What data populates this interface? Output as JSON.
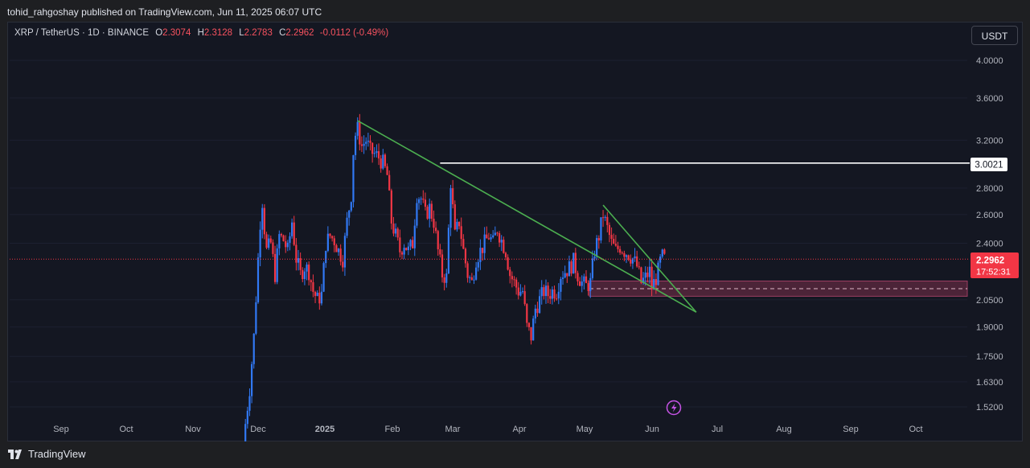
{
  "header": {
    "publisher_text": "tohid_rahgoshay published on TradingView.com, Jun 11, 2025 06:07 UTC"
  },
  "symbol": {
    "name": "XRP / TetherUS · 1D · BINANCE",
    "open_label": "O",
    "open_value": "2.3074",
    "high_label": "H",
    "high_value": "2.3128",
    "low_label": "L",
    "low_value": "2.2783",
    "close_label": "C",
    "close_value": "2.2962",
    "change": "-0.0112 (-0.49%)"
  },
  "currency_button": "USDT",
  "price_labels": {
    "resistance": "3.0021",
    "last_price": "2.2962",
    "countdown": "17:52:31"
  },
  "footer": {
    "brand": "TradingView"
  },
  "icons": [
    "tradingview-logo-icon",
    "lightning-icon"
  ],
  "colors": {
    "up": "#3179f5",
    "down": "#f23645",
    "trendline": "#4caf50",
    "resistance": "#ffffff",
    "zone": "#7a2f4b"
  },
  "chart_data": {
    "type": "candlestick",
    "scale": "log",
    "y_ticks": [
      "4.0000",
      "3.6000",
      "3.2000",
      "2.8000",
      "2.6000",
      "2.4000",
      "2.0500",
      "1.9000",
      "1.7500",
      "1.6300",
      "1.5200"
    ],
    "x_ticks": [
      "Sep",
      "Oct",
      "Nov",
      "Dec",
      "2025",
      "Feb",
      "Mar",
      "Apr",
      "May",
      "Jun",
      "Jul",
      "Aug",
      "Sep",
      "Oct"
    ],
    "ylim": [
      1.49,
      4.2
    ],
    "last_price": 2.2962,
    "resistance_level": 3.0021,
    "support_zone": [
      2.07,
      2.16
    ],
    "trendlines": [
      {
        "from": [
          "2025-01-17",
          3.38
        ],
        "to": [
          "2025-06-26",
          1.98
        ]
      },
      {
        "from": [
          "2025-05-13",
          2.67
        ],
        "to": [
          "2025-06-26",
          1.98
        ]
      }
    ],
    "closes": [
      [
        "2024-11-25",
        1.45
      ],
      [
        "2024-11-27",
        1.6
      ],
      [
        "2024-11-29",
        1.85
      ],
      [
        "2024-12-01",
        2.3
      ],
      [
        "2024-12-02",
        2.55
      ],
      [
        "2024-12-03",
        2.7
      ],
      [
        "2024-12-04",
        2.5
      ],
      [
        "2024-12-05",
        2.35
      ],
      [
        "2024-12-07",
        2.4
      ],
      [
        "2024-12-09",
        2.2
      ],
      [
        "2024-12-11",
        2.45
      ],
      [
        "2024-12-13",
        2.42
      ],
      [
        "2024-12-15",
        2.35
      ],
      [
        "2024-12-17",
        2.55
      ],
      [
        "2024-12-19",
        2.3
      ],
      [
        "2024-12-21",
        2.2
      ],
      [
        "2024-12-23",
        2.25
      ],
      [
        "2024-12-25",
        2.22
      ],
      [
        "2024-12-27",
        2.1
      ],
      [
        "2024-12-29",
        2.05
      ],
      [
        "2024-12-31",
        2.08
      ],
      [
        "2025-01-02",
        2.4
      ],
      [
        "2025-01-04",
        2.45
      ],
      [
        "2025-01-06",
        2.42
      ],
      [
        "2025-01-08",
        2.35
      ],
      [
        "2025-01-10",
        2.3
      ],
      [
        "2025-01-12",
        2.55
      ],
      [
        "2025-01-14",
        2.75
      ],
      [
        "2025-01-15",
        3.1
      ],
      [
        "2025-01-16",
        3.25
      ],
      [
        "2025-01-17",
        3.3
      ],
      [
        "2025-01-19",
        3.15
      ],
      [
        "2025-01-21",
        3.2
      ],
      [
        "2025-01-23",
        3.1
      ],
      [
        "2025-01-25",
        3.08
      ],
      [
        "2025-01-27",
        3.05
      ],
      [
        "2025-01-29",
        3.0
      ],
      [
        "2025-01-31",
        2.9
      ],
      [
        "2025-02-02",
        2.55
      ],
      [
        "2025-02-04",
        2.45
      ],
      [
        "2025-02-06",
        2.35
      ],
      [
        "2025-02-08",
        2.4
      ],
      [
        "2025-02-10",
        2.35
      ],
      [
        "2025-02-12",
        2.4
      ],
      [
        "2025-02-14",
        2.75
      ],
      [
        "2025-02-16",
        2.72
      ],
      [
        "2025-02-18",
        2.6
      ],
      [
        "2025-02-20",
        2.65
      ],
      [
        "2025-02-22",
        2.55
      ],
      [
        "2025-02-24",
        2.35
      ],
      [
        "2025-02-26",
        2.2
      ],
      [
        "2025-02-28",
        2.18
      ],
      [
        "2025-03-02",
        2.85
      ],
      [
        "2025-03-04",
        2.45
      ],
      [
        "2025-03-06",
        2.55
      ],
      [
        "2025-03-08",
        2.35
      ],
      [
        "2025-03-10",
        2.2
      ],
      [
        "2025-03-12",
        2.15
      ],
      [
        "2025-03-14",
        2.3
      ],
      [
        "2025-03-16",
        2.35
      ],
      [
        "2025-03-18",
        2.4
      ],
      [
        "2025-03-20",
        2.45
      ],
      [
        "2025-03-22",
        2.4
      ],
      [
        "2025-03-24",
        2.5
      ],
      [
        "2025-03-26",
        2.42
      ],
      [
        "2025-03-28",
        2.35
      ],
      [
        "2025-03-30",
        2.2
      ],
      [
        "2025-04-01",
        2.15
      ],
      [
        "2025-04-03",
        2.1
      ],
      [
        "2025-04-05",
        2.1
      ],
      [
        "2025-04-07",
        1.9
      ],
      [
        "2025-04-09",
        1.85
      ],
      [
        "2025-04-11",
        2.0
      ],
      [
        "2025-04-13",
        2.05
      ],
      [
        "2025-04-15",
        2.1
      ],
      [
        "2025-04-17",
        2.08
      ],
      [
        "2025-04-19",
        2.1
      ],
      [
        "2025-04-21",
        2.1
      ],
      [
        "2025-04-23",
        2.2
      ],
      [
        "2025-04-25",
        2.22
      ],
      [
        "2025-04-27",
        2.24
      ],
      [
        "2025-04-29",
        2.28
      ],
      [
        "2025-05-01",
        2.2
      ],
      [
        "2025-05-03",
        2.15
      ],
      [
        "2025-05-05",
        2.13
      ],
      [
        "2025-05-07",
        2.15
      ],
      [
        "2025-05-09",
        2.35
      ],
      [
        "2025-05-11",
        2.45
      ],
      [
        "2025-05-13",
        2.6
      ],
      [
        "2025-05-15",
        2.5
      ],
      [
        "2025-05-17",
        2.4
      ],
      [
        "2025-05-19",
        2.35
      ],
      [
        "2025-05-21",
        2.38
      ],
      [
        "2025-05-23",
        2.35
      ],
      [
        "2025-05-25",
        2.33
      ],
      [
        "2025-05-27",
        2.3
      ],
      [
        "2025-05-29",
        2.25
      ],
      [
        "2025-05-31",
        2.15
      ],
      [
        "2025-06-02",
        2.18
      ],
      [
        "2025-06-04",
        2.22
      ],
      [
        "2025-06-05",
        2.12
      ],
      [
        "2025-06-06",
        2.15
      ],
      [
        "2025-06-07",
        2.18
      ],
      [
        "2025-06-08",
        2.22
      ],
      [
        "2025-06-09",
        2.28
      ],
      [
        "2025-06-10",
        2.31
      ],
      [
        "2025-06-11",
        2.2962
      ]
    ]
  }
}
